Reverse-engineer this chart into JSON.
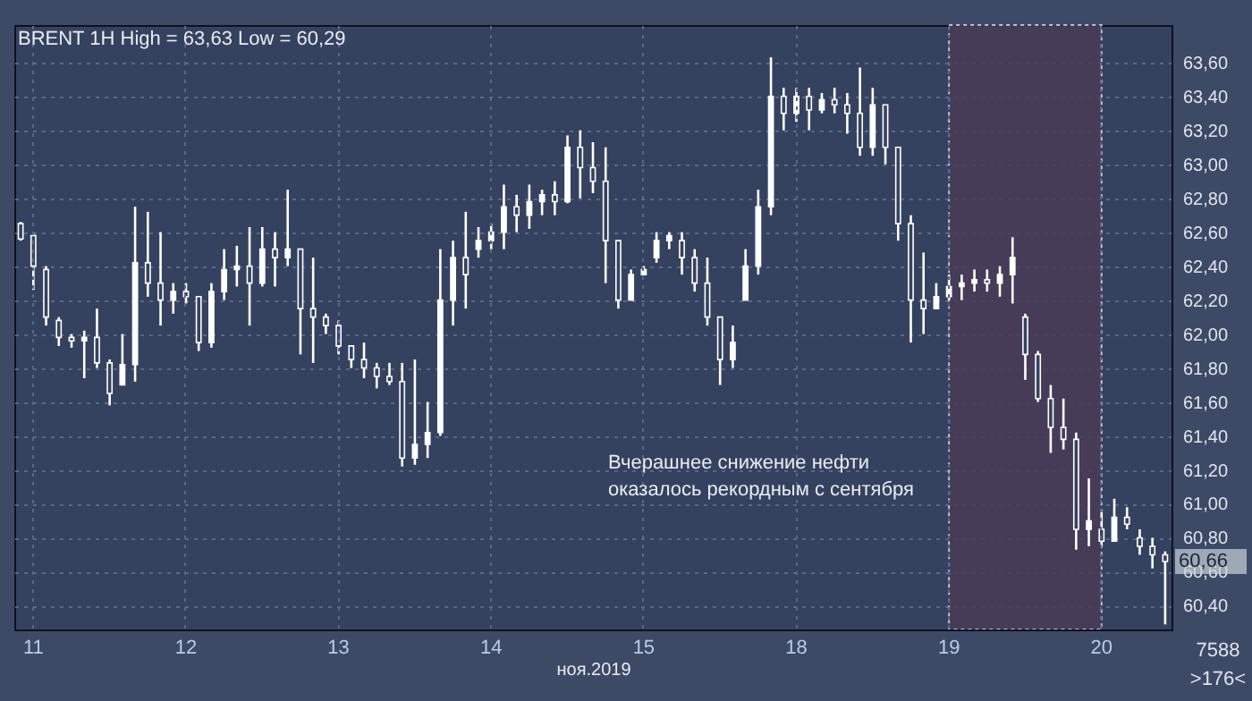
{
  "chart_data": {
    "type": "candlestick",
    "title": "BRENT 1H High = 63,63 Low = 60,29",
    "xlabel": "ноя.2019",
    "categories": [
      null,
      "11",
      null,
      null,
      null,
      null,
      null,
      null,
      null,
      null,
      null,
      null,
      null,
      "12",
      null,
      null,
      null,
      null,
      null,
      null,
      null,
      null,
      null,
      null,
      null,
      "13",
      null,
      null,
      null,
      null,
      null,
      null,
      null,
      null,
      null,
      null,
      null,
      "14",
      null,
      null,
      null,
      null,
      null,
      null,
      null,
      null,
      null,
      null,
      null,
      "15",
      null,
      null,
      null,
      null,
      null,
      null,
      null,
      null,
      null,
      null,
      null,
      "18",
      null,
      null,
      null,
      null,
      null,
      null,
      null,
      null,
      null,
      null,
      null,
      "19",
      null,
      null,
      null,
      null,
      null,
      null,
      null,
      null,
      null,
      null,
      null,
      "20",
      null,
      null,
      null,
      null,
      null
    ],
    "ohlc": [
      [
        62.65,
        62.66,
        62.55,
        62.56
      ],
      [
        62.58,
        62.59,
        62.26,
        62.4
      ],
      [
        62.38,
        62.4,
        62.05,
        62.1
      ],
      [
        62.08,
        62.1,
        61.93,
        61.98
      ],
      [
        61.98,
        62.0,
        61.92,
        61.96
      ],
      [
        61.96,
        62.02,
        61.74,
        61.98
      ],
      [
        61.98,
        62.15,
        61.8,
        61.83
      ],
      [
        61.83,
        61.85,
        61.58,
        61.65
      ],
      [
        61.7,
        62.0,
        61.7,
        61.82
      ],
      [
        61.82,
        62.75,
        61.72,
        62.42
      ],
      [
        62.42,
        62.72,
        62.22,
        62.3
      ],
      [
        62.3,
        62.6,
        62.05,
        62.2
      ],
      [
        62.2,
        62.3,
        62.12,
        62.25
      ],
      [
        62.25,
        62.3,
        62.18,
        62.22
      ],
      [
        62.22,
        62.22,
        61.9,
        61.95
      ],
      [
        61.95,
        62.3,
        61.92,
        62.25
      ],
      [
        62.25,
        62.5,
        62.2,
        62.38
      ],
      [
        62.38,
        62.52,
        62.28,
        62.4
      ],
      [
        62.4,
        62.63,
        62.05,
        62.3
      ],
      [
        62.3,
        62.63,
        62.28,
        62.5
      ],
      [
        62.5,
        62.6,
        62.28,
        62.45
      ],
      [
        62.45,
        62.85,
        62.4,
        62.5
      ],
      [
        62.5,
        62.5,
        61.88,
        62.15
      ],
      [
        62.15,
        62.45,
        61.83,
        62.1
      ],
      [
        62.1,
        62.12,
        62.0,
        62.05
      ],
      [
        62.05,
        62.08,
        61.88,
        61.93
      ],
      [
        61.93,
        61.93,
        61.8,
        61.85
      ],
      [
        61.85,
        61.95,
        61.74,
        61.8
      ],
      [
        61.8,
        61.83,
        61.68,
        61.75
      ],
      [
        61.75,
        61.83,
        61.7,
        61.72
      ],
      [
        61.72,
        61.83,
        61.22,
        61.27
      ],
      [
        61.27,
        61.85,
        61.23,
        61.35
      ],
      [
        61.35,
        61.6,
        61.27,
        61.42
      ],
      [
        61.42,
        62.5,
        61.4,
        62.2
      ],
      [
        62.2,
        62.55,
        62.05,
        62.45
      ],
      [
        62.45,
        62.72,
        62.15,
        62.35
      ],
      [
        62.5,
        62.63,
        62.45,
        62.55
      ],
      [
        62.55,
        62.65,
        62.5,
        62.6
      ],
      [
        62.6,
        62.88,
        62.5,
        62.75
      ],
      [
        62.75,
        62.82,
        62.6,
        62.7
      ],
      [
        62.7,
        62.88,
        62.62,
        62.78
      ],
      [
        62.78,
        62.85,
        62.7,
        62.82
      ],
      [
        62.82,
        62.9,
        62.7,
        62.78
      ],
      [
        62.78,
        63.17,
        62.77,
        63.1
      ],
      [
        63.1,
        63.2,
        62.8,
        62.98
      ],
      [
        62.98,
        63.13,
        62.83,
        62.9
      ],
      [
        62.9,
        63.1,
        62.3,
        62.55
      ],
      [
        62.55,
        62.55,
        62.15,
        62.2
      ],
      [
        62.2,
        62.38,
        62.2,
        62.35
      ],
      [
        62.35,
        62.4,
        62.35,
        62.38
      ],
      [
        62.45,
        62.6,
        62.42,
        62.55
      ],
      [
        62.55,
        62.6,
        62.5,
        62.58
      ],
      [
        62.55,
        62.6,
        62.35,
        62.45
      ],
      [
        62.45,
        62.5,
        62.25,
        62.3
      ],
      [
        62.3,
        62.45,
        62.05,
        62.1
      ],
      [
        62.1,
        62.1,
        61.7,
        61.85
      ],
      [
        61.85,
        62.05,
        61.8,
        61.95
      ],
      [
        62.2,
        62.5,
        62.2,
        62.4
      ],
      [
        62.4,
        62.85,
        62.35,
        62.75
      ],
      [
        62.75,
        63.63,
        62.7,
        63.4
      ],
      [
        63.4,
        63.45,
        63.2,
        63.3
      ],
      [
        63.3,
        63.45,
        63.25,
        63.4
      ],
      [
        63.4,
        63.45,
        63.2,
        63.32
      ],
      [
        63.32,
        63.42,
        63.3,
        63.38
      ],
      [
        63.38,
        63.45,
        63.3,
        63.35
      ],
      [
        63.35,
        63.42,
        63.18,
        63.3
      ],
      [
        63.3,
        63.57,
        63.05,
        63.1
      ],
      [
        63.1,
        63.45,
        63.05,
        63.35
      ],
      [
        63.35,
        63.35,
        63.0,
        63.1
      ],
      [
        63.1,
        63.1,
        62.55,
        62.65
      ],
      [
        62.65,
        62.7,
        61.95,
        62.2
      ],
      [
        62.2,
        62.48,
        62.0,
        62.15
      ],
      [
        62.15,
        62.3,
        62.15,
        62.22
      ],
      [
        62.22,
        62.35,
        62.2,
        62.28
      ],
      [
        62.28,
        62.35,
        62.2,
        62.3
      ],
      [
        62.3,
        62.38,
        62.25,
        62.32
      ],
      [
        62.32,
        62.38,
        62.25,
        62.3
      ],
      [
        62.3,
        62.4,
        62.22,
        62.35
      ],
      [
        62.35,
        62.57,
        62.18,
        62.45
      ],
      [
        62.1,
        62.12,
        61.73,
        61.88
      ],
      [
        61.88,
        61.9,
        61.6,
        61.62
      ],
      [
        61.62,
        61.7,
        61.3,
        61.45
      ],
      [
        61.45,
        61.62,
        61.32,
        61.38
      ],
      [
        61.38,
        61.42,
        60.73,
        60.85
      ],
      [
        60.85,
        61.15,
        60.75,
        60.9
      ],
      [
        60.85,
        60.95,
        60.75,
        60.78
      ],
      [
        60.78,
        61.03,
        60.78,
        60.92
      ],
      [
        60.92,
        60.98,
        60.85,
        60.88
      ],
      [
        60.8,
        60.85,
        60.7,
        60.75
      ],
      [
        60.75,
        60.8,
        60.62,
        60.7
      ],
      [
        60.7,
        60.72,
        60.29,
        60.66
      ]
    ],
    "ylim": [
      60.26,
      63.82
    ],
    "yticks": [
      {
        "value": 60.4,
        "label": "60,40"
      },
      {
        "value": 60.6,
        "label": "60,60"
      },
      {
        "value": 60.8,
        "label": "60,80"
      },
      {
        "value": 61.0,
        "label": "61,00"
      },
      {
        "value": 61.2,
        "label": "61,20"
      },
      {
        "value": 61.4,
        "label": "61,40"
      },
      {
        "value": 61.6,
        "label": "61,60"
      },
      {
        "value": 61.8,
        "label": "61,80"
      },
      {
        "value": 62.0,
        "label": "62,00"
      },
      {
        "value": 62.2,
        "label": "62,20"
      },
      {
        "value": 62.4,
        "label": "62,40"
      },
      {
        "value": 62.6,
        "label": "62,60"
      },
      {
        "value": 62.8,
        "label": "62,80"
      },
      {
        "value": 63.0,
        "label": "63,00"
      },
      {
        "value": 63.2,
        "label": "63,20"
      },
      {
        "value": 63.4,
        "label": "63,40"
      },
      {
        "value": 63.6,
        "label": "63,60"
      }
    ],
    "grid": true,
    "bands": [
      {
        "axis": "x",
        "from": "19",
        "to": "20",
        "color": "#4a3b57"
      }
    ],
    "annotations": [
      "Вчерашнее снижение нефти оказалось рекордным с сентября",
      "60,66",
      "7588",
      ">176<"
    ]
  }
}
